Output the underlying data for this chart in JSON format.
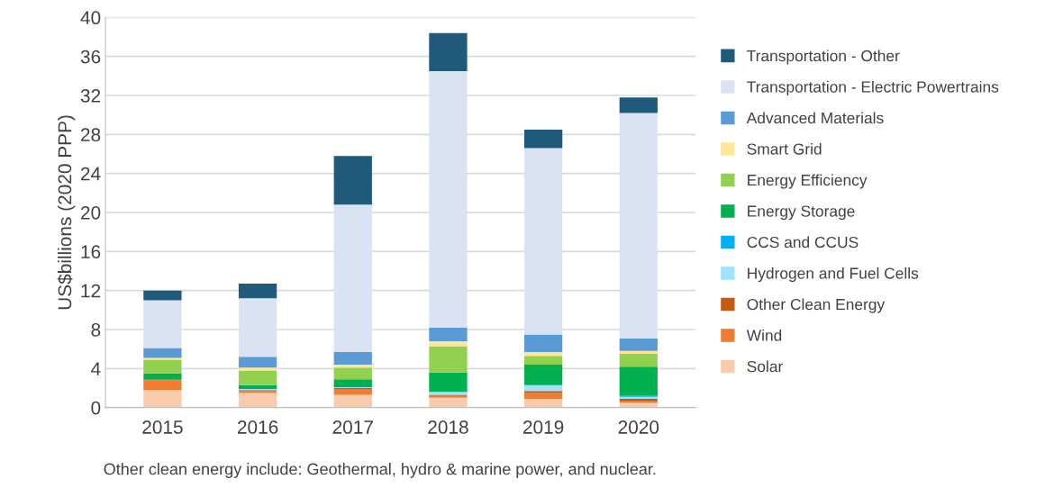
{
  "chart_data": {
    "type": "bar",
    "stacked": true,
    "ylabel": "US$billions (2020 PPP)",
    "categories": [
      "2015",
      "2016",
      "2017",
      "2018",
      "2019",
      "2020"
    ],
    "series": [
      {
        "name": "Solar",
        "color": "#f8cbad",
        "values": [
          1.8,
          1.5,
          1.3,
          1.0,
          0.9,
          0.5
        ]
      },
      {
        "name": "Wind",
        "color": "#ed7d31",
        "values": [
          1.0,
          0.2,
          0.6,
          0.2,
          0.6,
          0.2
        ]
      },
      {
        "name": "Other Clean Energy",
        "color": "#c55a11",
        "values": [
          0.1,
          0.1,
          0.1,
          0.1,
          0.2,
          0.2
        ]
      },
      {
        "name": "Hydrogen and Fuel Cells",
        "color": "#9fe3fa",
        "values": [
          null,
          0.1,
          0.1,
          0.3,
          0.6,
          0.2
        ]
      },
      {
        "name": "CCS and CCUS",
        "color": "#00b0f0",
        "values": [
          null,
          null,
          null,
          null,
          null,
          0.1
        ]
      },
      {
        "name": "Energy Storage",
        "color": "#00b050",
        "values": [
          0.6,
          0.4,
          0.8,
          2.0,
          2.1,
          3.0
        ]
      },
      {
        "name": "Energy Efficiency",
        "color": "#92d050",
        "values": [
          1.4,
          1.5,
          1.2,
          2.7,
          0.9,
          1.3
        ]
      },
      {
        "name": "Smart Grid",
        "color": "#ffe699",
        "values": [
          0.2,
          0.3,
          0.3,
          0.5,
          0.4,
          0.3
        ]
      },
      {
        "name": "Advanced Materials",
        "color": "#5b9bd5",
        "values": [
          1.0,
          1.1,
          1.3,
          1.4,
          1.8,
          1.3
        ]
      },
      {
        "name": "Transportation - Electric Powertrains",
        "color": "#dae3f3",
        "values": [
          4.9,
          6.0,
          15.1,
          26.3,
          19.1,
          23.1
        ]
      },
      {
        "name": "Transportation - Other",
        "color": "#1f5a7a",
        "values": [
          1.0,
          1.5,
          5.0,
          3.9,
          1.9,
          1.6
        ]
      }
    ],
    "ylim": [
      0,
      40
    ],
    "yticks": [
      0,
      4,
      8,
      12,
      16,
      20,
      24,
      28,
      32,
      36,
      40
    ],
    "grid": "y",
    "legend": "right",
    "annotations": [
      "Other clean energy include: Geothermal, hydro & marine power, and nuclear."
    ]
  }
}
